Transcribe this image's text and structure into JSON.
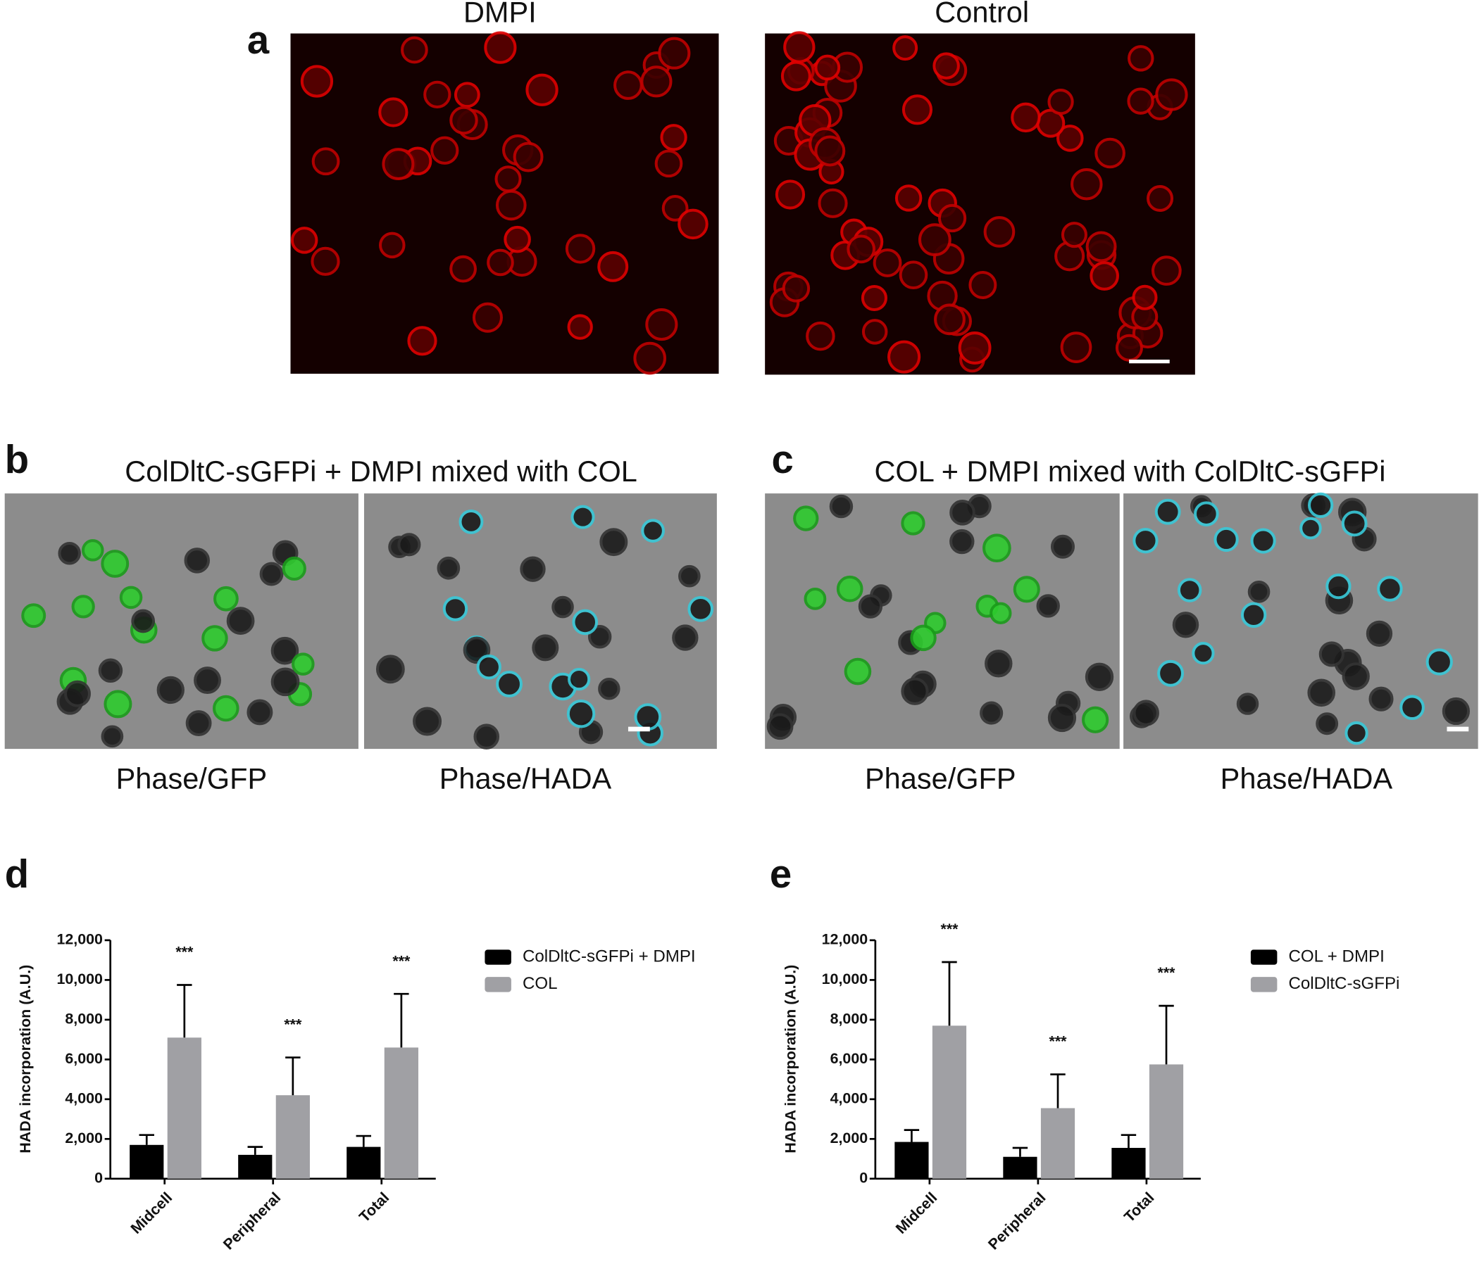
{
  "panel_a": {
    "label": "a",
    "titles": [
      "DMPI",
      "Control"
    ]
  },
  "panel_b": {
    "label": "b",
    "title": "ColDltC-sGFPi + DMPI mixed with COL",
    "captions": [
      "Phase/GFP",
      "Phase/HADA"
    ]
  },
  "panel_c": {
    "label": "c",
    "title": "COL + DMPI mixed with ColDltC-sGFPi",
    "captions": [
      "Phase/GFP",
      "Phase/HADA"
    ]
  },
  "chart_data": [
    {
      "type": "bar",
      "panel_label": "d",
      "ylabel": "HADA incorporation  (A.U.)",
      "categories": [
        "Midcell",
        "Peripheral",
        "Total"
      ],
      "series": [
        {
          "name": "ColDltC-sGFPi + DMPI",
          "color": "#000000",
          "values": [
            1700,
            1200,
            1600
          ],
          "errors": [
            500,
            400,
            550
          ]
        },
        {
          "name": "COL",
          "color": "#a0a0a4",
          "values": [
            7100,
            4200,
            6600
          ],
          "errors": [
            2650,
            1900,
            2700
          ]
        }
      ],
      "annotations": [
        "***",
        "***",
        "***"
      ],
      "ylim": [
        0,
        12000
      ],
      "yticks": [
        0,
        {
          "value": 2000,
          "label": "2,000"
        },
        {
          "value": 4000,
          "label": "4,000"
        },
        {
          "value": 6000,
          "label": "6,000"
        },
        {
          "value": 8000,
          "label": "8,000"
        },
        {
          "value": 10000,
          "label": "10,000"
        },
        {
          "value": 12000,
          "label": "12,000"
        }
      ]
    },
    {
      "type": "bar",
      "panel_label": "e",
      "ylabel": "HADA incorporation  (A.U.)",
      "categories": [
        "Midcell",
        "Peripheral",
        "Total"
      ],
      "series": [
        {
          "name": "COL + DMPI",
          "color": "#000000",
          "values": [
            1850,
            1100,
            1550
          ],
          "errors": [
            600,
            450,
            650
          ]
        },
        {
          "name": "ColDltC-sGFPi",
          "color": "#a0a0a4",
          "values": [
            7700,
            3550,
            5750
          ],
          "errors": [
            3200,
            1700,
            2950
          ]
        }
      ],
      "annotations": [
        "***",
        "***",
        "***"
      ],
      "ylim": [
        0,
        12000
      ],
      "yticks": [
        0,
        {
          "value": 2000,
          "label": "2,000"
        },
        {
          "value": 4000,
          "label": "4,000"
        },
        {
          "value": 6000,
          "label": "6,000"
        },
        {
          "value": 8000,
          "label": "8,000"
        },
        {
          "value": 10000,
          "label": "10,000"
        },
        {
          "value": 12000,
          "label": "12,000"
        }
      ]
    }
  ]
}
